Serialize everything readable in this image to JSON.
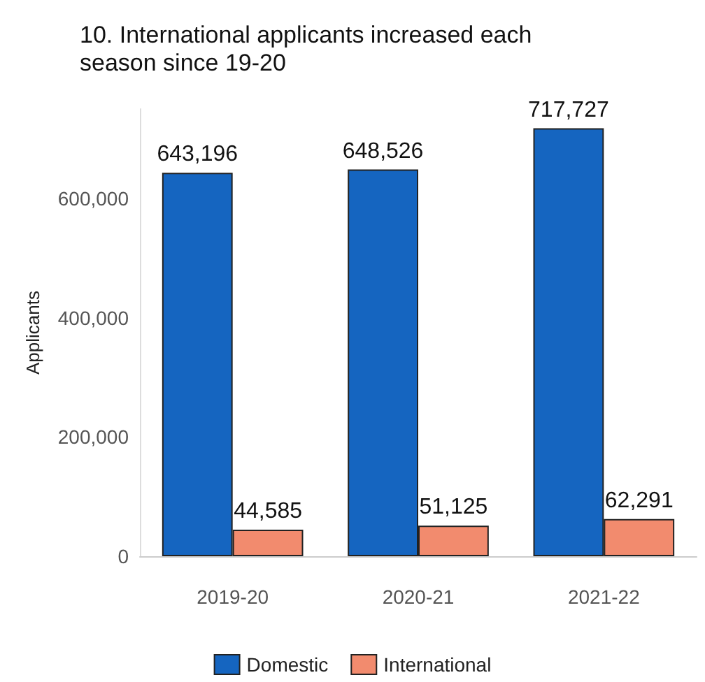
{
  "chart_data": {
    "type": "bar",
    "title": "10. International applicants increased each season since 19-20",
    "ylabel": "Applicants",
    "categories": [
      "2019-20",
      "2020-21",
      "2021-22"
    ],
    "series": [
      {
        "name": "Domestic",
        "color": "#1565c0",
        "values": [
          643196,
          648526,
          717727
        ],
        "value_labels": [
          "643,196",
          "648,526",
          "717,727"
        ]
      },
      {
        "name": "International",
        "color": "#f28b6e",
        "values": [
          44585,
          51125,
          62291
        ],
        "value_labels": [
          "44,585",
          "51,125",
          "62,291"
        ]
      }
    ],
    "ylim": [
      0,
      750000
    ],
    "yticks": [
      {
        "value": 0,
        "label": "0"
      },
      {
        "value": 200000,
        "label": "200,000"
      },
      {
        "value": 400000,
        "label": "400,000"
      },
      {
        "value": 600000,
        "label": "600,000"
      }
    ],
    "grid": false,
    "legend": "bottom"
  }
}
